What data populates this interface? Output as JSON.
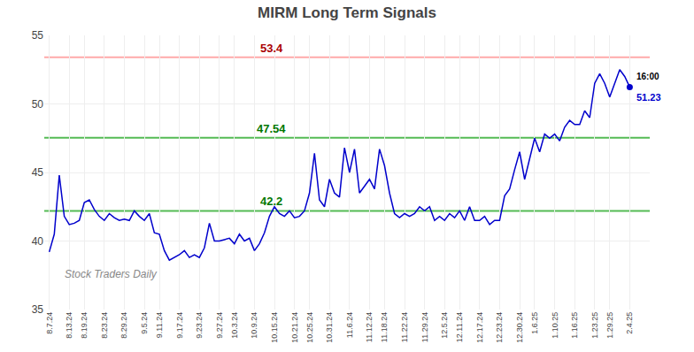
{
  "chart_data": {
    "type": "line",
    "title": "MIRM Long Term Signals",
    "categories": [
      "8.7.24",
      null,
      null,
      null,
      "8.13.24",
      null,
      null,
      "8.19.24",
      null,
      null,
      null,
      "8.23.24",
      null,
      null,
      null,
      "8.29.24",
      null,
      null,
      null,
      "9.5.24",
      null,
      null,
      "9.11.24",
      null,
      null,
      null,
      "9.17.24",
      null,
      null,
      null,
      "9.23.24",
      null,
      null,
      null,
      "9.27.24",
      null,
      null,
      "10.3.24",
      null,
      null,
      null,
      "10.9.24",
      null,
      null,
      null,
      "10.15.24",
      null,
      null,
      null,
      "10.21.24",
      null,
      null,
      "10.25.24",
      null,
      null,
      null,
      "10.31.24",
      null,
      null,
      null,
      "11.6.24",
      null,
      null,
      null,
      "11.12.24",
      null,
      null,
      "11.18.24",
      null,
      null,
      null,
      "11.22.24",
      null,
      null,
      null,
      "11.29.24",
      null,
      null,
      null,
      "12.5.24",
      null,
      null,
      "12.11.24",
      null,
      null,
      null,
      "12.17.24",
      null,
      null,
      null,
      "12.23.24",
      null,
      null,
      null,
      "12.30.24",
      null,
      null,
      "1.6.25",
      null,
      null,
      null,
      "1.10.25",
      null,
      null,
      null,
      "1.16.25",
      null,
      null,
      null,
      "1.23.25",
      null,
      null,
      "1.29.25",
      null,
      null,
      null,
      "2.4.25"
    ],
    "values": [
      39.2,
      40.5,
      44.8,
      41.8,
      41.2,
      41.3,
      41.5,
      42.8,
      43.0,
      42.3,
      41.8,
      41.5,
      42.0,
      41.7,
      41.5,
      41.6,
      41.5,
      42.2,
      41.8,
      41.5,
      42.0,
      40.6,
      40.5,
      39.3,
      38.6,
      38.8,
      39.0,
      39.3,
      38.8,
      39.0,
      38.8,
      39.5,
      41.3,
      40.0,
      40.0,
      40.1,
      40.2,
      39.8,
      40.5,
      40.0,
      40.2,
      39.3,
      39.8,
      40.6,
      41.8,
      42.5,
      42.0,
      41.8,
      42.2,
      41.7,
      41.8,
      42.2,
      43.5,
      46.4,
      43.0,
      42.5,
      44.5,
      43.5,
      43.2,
      46.8,
      45.0,
      46.7,
      43.5,
      44.0,
      44.5,
      43.8,
      46.7,
      45.5,
      43.5,
      42.0,
      41.7,
      42.0,
      41.8,
      42.0,
      42.5,
      42.2,
      42.5,
      41.5,
      41.8,
      41.5,
      42.0,
      41.7,
      42.2,
      41.5,
      42.5,
      41.5,
      41.5,
      41.8,
      41.2,
      41.5,
      41.5,
      43.3,
      43.8,
      45.2,
      46.5,
      44.5,
      46.0,
      47.5,
      46.5,
      47.8,
      47.5,
      47.8,
      47.3,
      48.3,
      48.8,
      48.5,
      48.5,
      49.5,
      49.0,
      51.5,
      52.2,
      51.5,
      50.5,
      51.5,
      52.5,
      52.0,
      51.23
    ],
    "color": "#0000cc",
    "reference_lines": [
      {
        "value": 53.4,
        "label": "53.4",
        "color": "#ffaaaa",
        "label_color": "#aa0000"
      },
      {
        "value": 47.54,
        "label": "47.54",
        "color": "#55bb55",
        "label_color": "#007700"
      },
      {
        "value": 42.2,
        "label": "42.2",
        "color": "#55bb55",
        "label_color": "#007700"
      }
    ],
    "last_point": {
      "value": 51.23,
      "label": "51.23",
      "time": "16:00"
    },
    "watermark": "Stock Traders Daily",
    "ylim": [
      35,
      55
    ],
    "yticks": [
      35,
      40,
      45,
      50,
      55
    ],
    "grid": true
  }
}
